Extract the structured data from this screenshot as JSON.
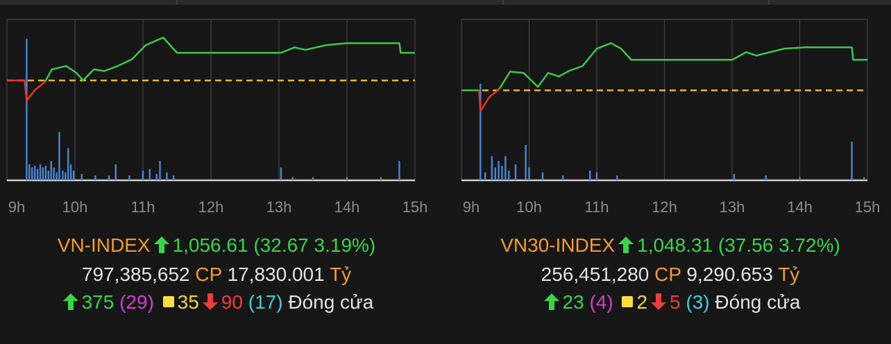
{
  "chart_data": [
    {
      "type": "line",
      "xlim": [
        9,
        15
      ],
      "xticks": [
        {
          "value": 9,
          "label": "9h"
        },
        {
          "value": 10,
          "label": "10h"
        },
        {
          "value": 11,
          "label": "11h"
        },
        {
          "value": 12,
          "label": "12h"
        },
        {
          "value": 13,
          "label": "13h"
        },
        {
          "value": 14,
          "label": "14h"
        },
        {
          "value": 15,
          "label": "15h"
        }
      ],
      "ylim": [
        906,
        1096
      ],
      "reference": 1023.94,
      "ref_color": "#e9b82a",
      "up_color": "#3ec84a",
      "down_color": "#e8332e",
      "x": [
        9,
        9.26,
        9.29,
        9.41,
        9.56,
        9.66,
        9.87,
        10.02,
        10.12,
        10.28,
        10.43,
        10.63,
        10.84,
        11.04,
        11.3,
        11.5,
        13.03,
        13.23,
        13.39,
        13.69,
        14.0,
        14.77,
        14.79,
        15
      ],
      "values": [
        1023.9,
        1023.9,
        1000.2,
        1012.5,
        1022.3,
        1037,
        1041,
        1033,
        1024,
        1037,
        1035,
        1041,
        1049,
        1065.6,
        1074.6,
        1056.6,
        1056.6,
        1063,
        1060,
        1065.6,
        1068,
        1068,
        1056.6,
        1056.6
      ],
      "volume": {
        "color": "#4a86d8",
        "y2lim": [
          0,
          100
        ],
        "x": [
          9.29,
          9.33,
          9.37,
          9.41,
          9.45,
          9.49,
          9.53,
          9.57,
          9.61,
          9.65,
          9.69,
          9.73,
          9.77,
          9.82,
          9.86,
          9.9,
          9.94,
          9.98,
          10.1,
          10.3,
          10.5,
          10.6,
          10.8,
          11.0,
          11.1,
          11.2,
          11.25,
          11.35,
          11.45,
          13.03,
          13.2,
          13.5,
          14.0,
          14.5,
          14.77
        ],
        "values": [
          88,
          10,
          8,
          9,
          7,
          10,
          8,
          9,
          6,
          12,
          8,
          5,
          30,
          6,
          5,
          20,
          10,
          6,
          4,
          3,
          3,
          10,
          3,
          6,
          7,
          4,
          12,
          5,
          3,
          8,
          2,
          2,
          2,
          2,
          12
        ]
      },
      "summary": {
        "name": "VN-INDEX",
        "close": "1,056.61",
        "change": "(32.67 3.19%)",
        "volume": "797,385,652",
        "volume_unit": "CP",
        "value": "17,830.001",
        "value_unit": "Tỷ",
        "up": "375",
        "ceiling": "(29)",
        "unchanged": "35",
        "down": "90",
        "floor": "(17)",
        "status": "Đóng cửa"
      }
    },
    {
      "type": "line",
      "xlim": [
        9,
        15
      ],
      "xticks": [
        {
          "value": 9,
          "label": "9h"
        },
        {
          "value": 10,
          "label": "10h"
        },
        {
          "value": 11,
          "label": "11h"
        },
        {
          "value": 12,
          "label": "12h"
        },
        {
          "value": 13,
          "label": "13h"
        },
        {
          "value": 14,
          "label": "14h"
        },
        {
          "value": 15,
          "label": "15h"
        }
      ],
      "ylim": [
        900,
        1098
      ],
      "reference": 1010.75,
      "ref_color": "#e9b82a",
      "up_color": "#3ec84a",
      "down_color": "#e8332e",
      "x": [
        9,
        9.26,
        9.28,
        9.41,
        9.56,
        9.72,
        9.92,
        10.13,
        10.28,
        10.44,
        10.59,
        10.79,
        11.0,
        11.21,
        11.36,
        11.51,
        13.0,
        13.21,
        13.36,
        13.77,
        14.08,
        14.77,
        14.79,
        15
      ],
      "values": [
        1010.75,
        1010.75,
        985.1,
        1002.2,
        1012.5,
        1033.8,
        1032.1,
        1015,
        1032.1,
        1027.8,
        1034.7,
        1040.6,
        1062,
        1068.8,
        1062,
        1048.3,
        1048.3,
        1057.7,
        1053.5,
        1062,
        1063.7,
        1063.7,
        1048.3,
        1048.3
      ],
      "volume": {
        "color": "#4a86d8",
        "y2lim": [
          0,
          100
        ],
        "x": [
          9.28,
          9.35,
          9.45,
          9.5,
          9.55,
          9.6,
          9.65,
          9.7,
          9.8,
          9.95,
          10.0,
          10.2,
          10.5,
          10.9,
          11.0,
          11.3,
          13.03,
          13.5,
          14.0,
          14.77,
          14.95
        ],
        "values": [
          60,
          5,
          15,
          8,
          12,
          9,
          15,
          6,
          10,
          22,
          8,
          5,
          3,
          6,
          5,
          3,
          4,
          3,
          2,
          24,
          2
        ]
      },
      "summary": {
        "name": "VN30-INDEX",
        "close": "1,048.31",
        "change": "(37.56 3.72%)",
        "volume": "256,451,280",
        "volume_unit": "CP",
        "value": "9,290.653",
        "value_unit": "Tỷ",
        "up": "23",
        "ceiling": "(4)",
        "unchanged": "2",
        "down": "5",
        "floor": "(3)",
        "status": "Đóng cửa"
      }
    }
  ]
}
